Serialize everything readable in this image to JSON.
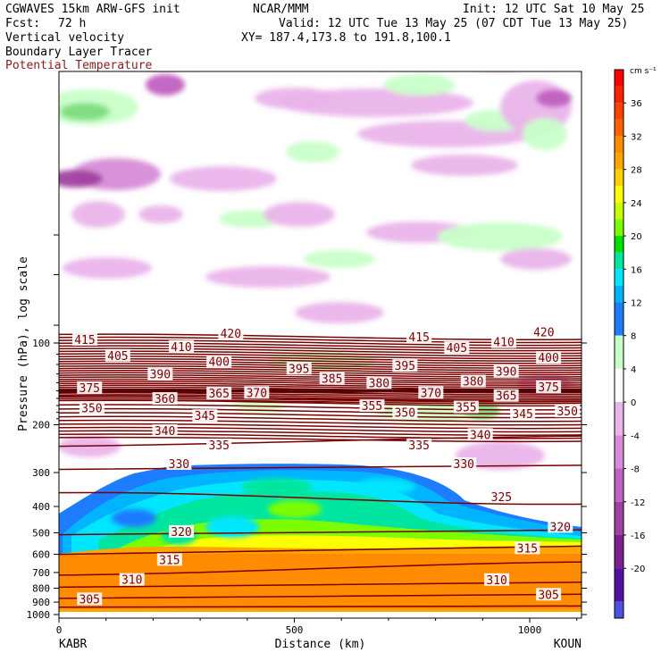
{
  "header": {
    "model": "CGWAVES 15km ARW-GFS init",
    "fcst_label": "Fcst:",
    "fcst_value": "72 h",
    "source": "NCAR/MMM",
    "init": "Init: 12 UTC Sat 10 May 25",
    "valid": "Valid: 12 UTC Tue 13 May 25 (07 CDT Tue 13 May 25)",
    "xy": "XY= 187.4,173.8 to 191.8,100.1",
    "field1": "Vertical velocity",
    "field2": "Boundary Layer Tracer",
    "field3": "Potential Temperature"
  },
  "colors": {
    "theta": "#7a0000",
    "field3_text": "#8b1a1a"
  },
  "chart_data": {
    "type": "heatmap",
    "xlabel": "Distance (km)",
    "ylabel": "Pressure (hPa), log scale",
    "x_ticks": [
      "0",
      "500",
      "1000"
    ],
    "x_tick_values": [
      0,
      500,
      1000
    ],
    "xlim": [
      0,
      1110
    ],
    "y_ticks": [
      "100",
      "200",
      "300",
      "400",
      "500",
      "600",
      "700",
      "800",
      "900",
      "1000"
    ],
    "y_tick_values": [
      100,
      200,
      300,
      400,
      500,
      600,
      700,
      800,
      900,
      1000
    ],
    "y_scale": "log",
    "left_station": "KABR",
    "right_station": "KOUN",
    "colorbar": {
      "units": "cm s⁻¹",
      "labels": [
        "36",
        "32",
        "28",
        "24",
        "20",
        "16",
        "12",
        "8",
        "4",
        "0",
        "-4",
        "-8",
        "-12",
        "-16",
        "-20"
      ],
      "label_values": [
        36,
        32,
        28,
        24,
        20,
        16,
        12,
        8,
        4,
        0,
        -4,
        -8,
        -12,
        -16,
        -20
      ],
      "colors": [
        "#ff0000",
        "#ff2000",
        "#ff4200",
        "#ff6100",
        "#ff8c00",
        "#ffa500",
        "#ffd200",
        "#ffff00",
        "#c8ff00",
        "#7cfc00",
        "#00e100",
        "#00e6a0",
        "#00e6ff",
        "#00b4ff",
        "#1e7cff",
        "#c8ffc8",
        "#ffffff",
        "#eab4ea",
        "#d78cd7",
        "#c060c0",
        "#a040a0",
        "#7c2090",
        "#5010a0",
        "#5050e0",
        "#8080ff"
      ],
      "boundaries": [
        40,
        38,
        36,
        34,
        32,
        30,
        28,
        26,
        24,
        22,
        20,
        18,
        16,
        14,
        12,
        8,
        4,
        0,
        -4,
        -8,
        -12,
        -16,
        -20,
        -24,
        -26
      ]
    },
    "theta_label_placements": [
      {
        "value": "415",
        "x": 55,
        "p": 97
      },
      {
        "value": "420",
        "x": 365,
        "p": 92
      },
      {
        "value": "415",
        "x": 765,
        "p": 95
      },
      {
        "value": "420",
        "x": 1030,
        "p": 91
      },
      {
        "value": "405",
        "x": 125,
        "p": 111
      },
      {
        "value": "410",
        "x": 260,
        "p": 103
      },
      {
        "value": "405",
        "x": 845,
        "p": 104
      },
      {
        "value": "410",
        "x": 945,
        "p": 99
      },
      {
        "value": "400",
        "x": 340,
        "p": 117
      },
      {
        "value": "400",
        "x": 1040,
        "p": 113
      },
      {
        "value": "395",
        "x": 510,
        "p": 124
      },
      {
        "value": "395",
        "x": 735,
        "p": 121
      },
      {
        "value": "390",
        "x": 215,
        "p": 130
      },
      {
        "value": "390",
        "x": 950,
        "p": 127
      },
      {
        "value": "385",
        "x": 580,
        "p": 135
      },
      {
        "value": "380",
        "x": 680,
        "p": 140
      },
      {
        "value": "380",
        "x": 880,
        "p": 138
      },
      {
        "value": "375",
        "x": 65,
        "p": 146
      },
      {
        "value": "375",
        "x": 1040,
        "p": 145
      },
      {
        "value": "365",
        "x": 340,
        "p": 153
      },
      {
        "value": "370",
        "x": 420,
        "p": 152
      },
      {
        "value": "370",
        "x": 790,
        "p": 152
      },
      {
        "value": "365",
        "x": 950,
        "p": 156
      },
      {
        "value": "360",
        "x": 225,
        "p": 160
      },
      {
        "value": "350",
        "x": 70,
        "p": 173
      },
      {
        "value": "355",
        "x": 665,
        "p": 170
      },
      {
        "value": "355",
        "x": 865,
        "p": 172
      },
      {
        "value": "345",
        "x": 310,
        "p": 185
      },
      {
        "value": "350",
        "x": 735,
        "p": 180
      },
      {
        "value": "345",
        "x": 985,
        "p": 182
      },
      {
        "value": "350",
        "x": 1080,
        "p": 178
      },
      {
        "value": "340",
        "x": 225,
        "p": 210
      },
      {
        "value": "340",
        "x": 895,
        "p": 217
      },
      {
        "value": "335",
        "x": 340,
        "p": 237
      },
      {
        "value": "335",
        "x": 765,
        "p": 237
      },
      {
        "value": "330",
        "x": 255,
        "p": 278
      },
      {
        "value": "330",
        "x": 860,
        "p": 278
      },
      {
        "value": "325",
        "x": 940,
        "p": 368
      },
      {
        "value": "320",
        "x": 260,
        "p": 494
      },
      {
        "value": "320",
        "x": 1065,
        "p": 474
      },
      {
        "value": "315",
        "x": 235,
        "p": 627
      },
      {
        "value": "315",
        "x": 995,
        "p": 568
      },
      {
        "value": "310",
        "x": 155,
        "p": 742
      },
      {
        "value": "310",
        "x": 930,
        "p": 743
      },
      {
        "value": "305",
        "x": 65,
        "p": 875
      },
      {
        "value": "305",
        "x": 1040,
        "p": 842
      }
    ]
  }
}
